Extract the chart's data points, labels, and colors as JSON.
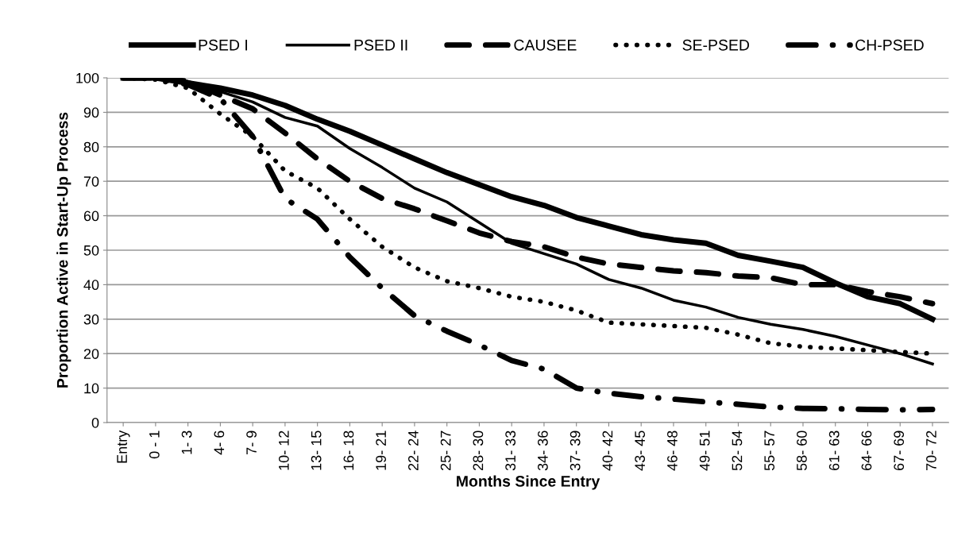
{
  "chart_data": {
    "type": "line",
    "xlabel": "Months Since Entry",
    "ylabel": "Proportion Active in Start-Up Process",
    "categories": [
      "Entry",
      "0 - 1",
      "1- 3",
      "4- 6",
      "7- 9",
      "10- 12",
      "13- 15",
      "16- 18",
      "19- 21",
      "22- 24",
      "25- 27",
      "28- 30",
      "31- 33",
      "34- 36",
      "37- 39",
      "40- 42",
      "43- 45",
      "46- 48",
      "49- 51",
      "52- 54",
      "55- 57",
      "58- 60",
      "61- 63",
      "64- 66",
      "67- 69",
      "70- 72"
    ],
    "series": [
      {
        "name": "PSED I",
        "color": "#000000",
        "line_style": "solid",
        "values": [
          100,
          100,
          98.5,
          97,
          95,
          92,
          88,
          84.5,
          80.5,
          76.5,
          72.5,
          69,
          65.5,
          63,
          59.5,
          57,
          54.5,
          53,
          52,
          48.5,
          46.8,
          45,
          40.5,
          36.5,
          34.5,
          30
        ]
      },
      {
        "name": "PSED II",
        "color": "#000000",
        "line_style": "solid",
        "values": [
          100,
          100,
          99,
          96,
          93,
          88.5,
          86,
          79.5,
          74,
          68,
          64,
          58,
          52,
          49,
          46,
          41.5,
          39,
          35.5,
          33.5,
          30.5,
          28.5,
          27,
          25,
          22.5,
          20,
          17
        ]
      },
      {
        "name": "CAUSEE",
        "color": "#000000",
        "line_style": "dashed",
        "values": [
          100,
          100,
          99,
          95,
          91,
          84,
          76.5,
          70,
          65,
          62,
          58.5,
          55,
          52.5,
          51,
          48,
          46,
          45,
          44,
          43.5,
          42.5,
          42,
          40,
          40,
          38,
          36.5,
          34.5
        ]
      },
      {
        "name": "SE-PSED",
        "color": "#000000",
        "line_style": "dotted",
        "values": [
          100,
          99.5,
          97,
          89.5,
          83,
          73,
          68,
          59,
          51,
          45,
          41,
          39,
          36.5,
          35,
          32.5,
          29,
          28.5,
          28,
          27.5,
          25.5,
          23,
          22,
          21.5,
          21,
          20.5,
          20
        ]
      },
      {
        "name": "CH-PSED",
        "color": "#000000",
        "line_style": "dashdot",
        "values": [
          100,
          100,
          98,
          94,
          83,
          65,
          59,
          48,
          39,
          31,
          26.5,
          22.5,
          18,
          15.5,
          10,
          8.5,
          7.5,
          6.8,
          6,
          5.3,
          4.5,
          4.1,
          4,
          3.8,
          3.7,
          3.8
        ]
      }
    ],
    "ylim": [
      0,
      100
    ],
    "yticks": [
      0,
      10,
      20,
      30,
      40,
      50,
      60,
      70,
      80,
      90,
      100
    ],
    "grid": "y",
    "legend": "top",
    "marker": "none"
  }
}
